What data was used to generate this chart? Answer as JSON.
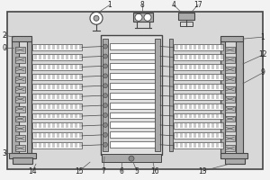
{
  "bg_color": "#f2f2f2",
  "line_color": "#555555",
  "dark_color": "#444444",
  "white": "#ffffff",
  "gray_light": "#d8d8d8",
  "gray_med": "#aaaaaa",
  "gray_dark": "#888888"
}
